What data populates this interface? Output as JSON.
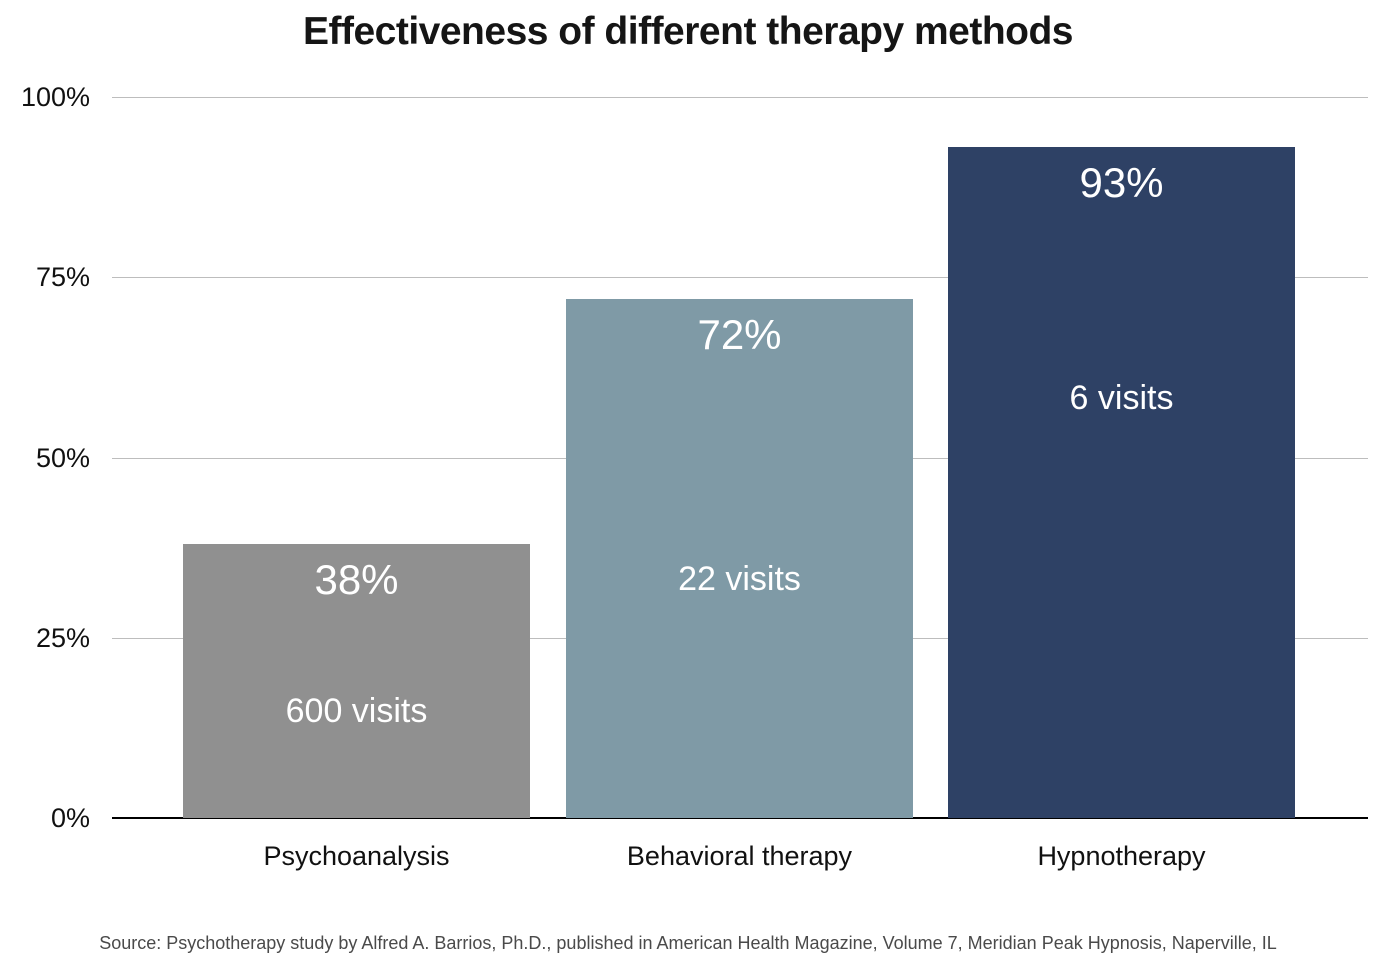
{
  "page": {
    "source": "Source: Psychotherapy study by Alfred A. Barrios, Ph.D., published in American Health Magazine, Volume 7, Meridian Peak Hypnosis, Naperville, IL"
  },
  "chart_data": {
    "type": "bar",
    "title": "Effectiveness of different therapy methods",
    "categories": [
      "Psychoanalysis",
      "Behavioral therapy",
      "Hypnotherapy"
    ],
    "values": [
      38,
      72,
      93
    ],
    "value_labels": [
      "38%",
      "72%",
      "93%"
    ],
    "annotations": [
      "600 visits",
      "22 visits",
      "6 visits"
    ],
    "bar_colors": [
      "#909090",
      "#7f9aa6",
      "#2e4165"
    ],
    "label_text_color": "#ffffff",
    "xlabel": "",
    "ylabel": "",
    "ylim": [
      0,
      100
    ],
    "yticks": [
      0,
      25,
      50,
      75,
      100
    ],
    "ytick_labels": [
      "0%",
      "25%",
      "50%",
      "75%",
      "100%"
    ],
    "grid": "horizontal",
    "gridline_color": "#bdbdbd",
    "axis_line_color": "#000000",
    "legend": "none"
  }
}
